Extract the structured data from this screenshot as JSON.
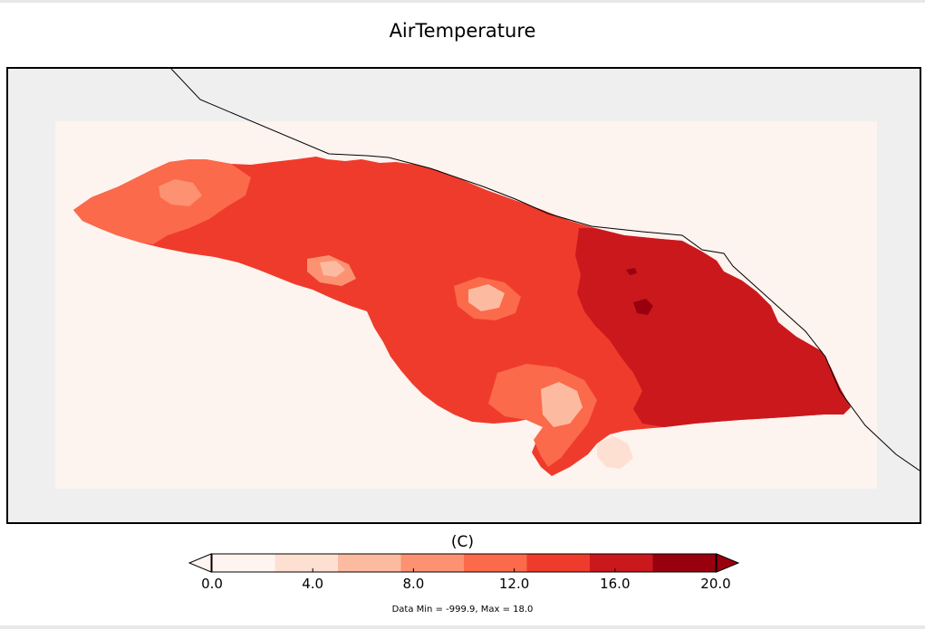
{
  "title": "AirTemperature",
  "units": "(C)",
  "data_range_text": "Data Min = -999.9, Max = 18.0",
  "colors": {
    "background": "#efefef",
    "land_fill": "#fdf3ef",
    "border": "#000000",
    "boundary_line": "#000000"
  },
  "colorbar": {
    "min": 0.0,
    "max": 20.0,
    "extend": "both",
    "bin_colors": [
      "#fff5f0",
      "#fee0d2",
      "#fcbba1",
      "#fc9272",
      "#fb6a4a",
      "#ef3b2c",
      "#cb181d",
      "#99000d"
    ],
    "under_color": "#fff5f0",
    "over_color": "#99000d",
    "ticks": [
      {
        "value": 0.0,
        "label": "0.0"
      },
      {
        "value": 4.0,
        "label": "4.0"
      },
      {
        "value": 8.0,
        "label": "8.0"
      },
      {
        "value": 12.0,
        "label": "12.0"
      },
      {
        "value": 16.0,
        "label": "16.0"
      },
      {
        "value": 20.0,
        "label": "20.0"
      }
    ]
  },
  "chart_data": {
    "type": "heatmap",
    "title": "AirTemperature",
    "colorbar_label": "(C)",
    "vmin": 0.0,
    "vmax": 20.0,
    "data_min": -999.9,
    "data_max": 18.0,
    "colormap": "Reds"
  }
}
